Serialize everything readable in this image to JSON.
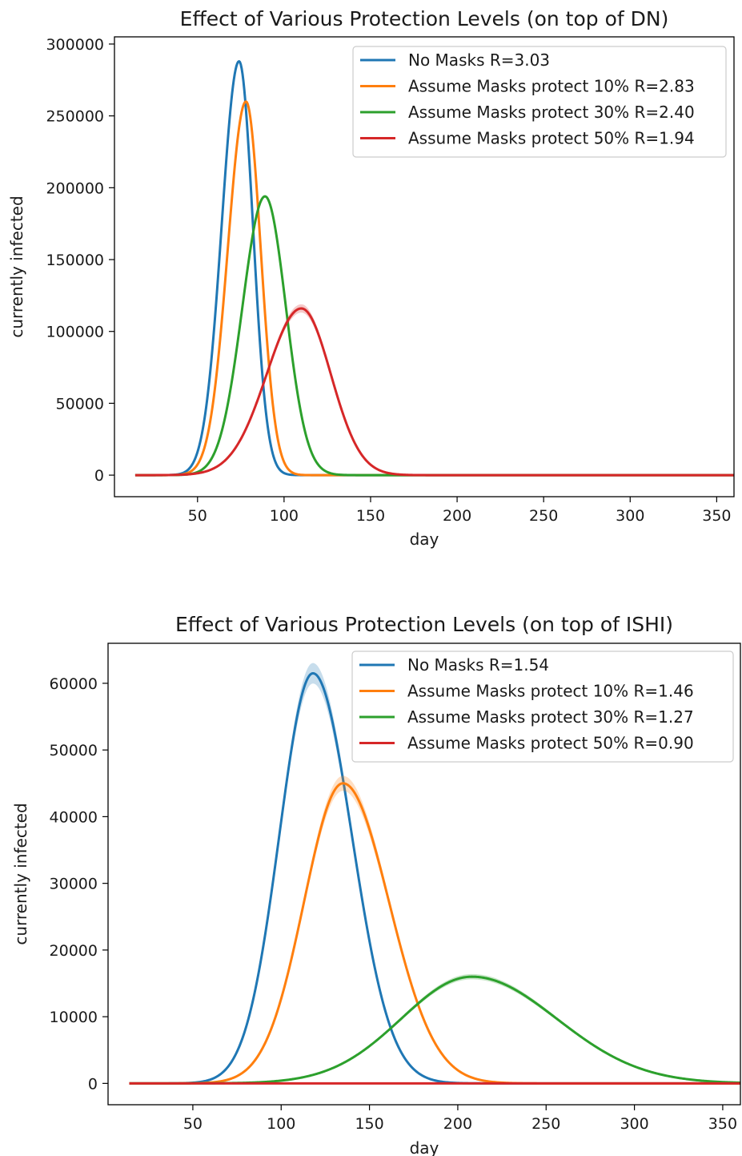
{
  "chart_data": [
    {
      "type": "line",
      "title": "Effect of Various Protection Levels (on top of DN)",
      "xlabel": "day",
      "ylabel": "currently infected",
      "xlim": [
        2,
        360
      ],
      "ylim": [
        -15000,
        305000
      ],
      "xticks": [
        50,
        100,
        150,
        200,
        250,
        300,
        350
      ],
      "yticks": [
        0,
        50000,
        100000,
        150000,
        200000,
        250000,
        300000
      ],
      "grid": false,
      "legend": "top-right",
      "series": [
        {
          "name": "No Masks R=3.03",
          "color": "#1f77b4",
          "peak_day": 74,
          "peak_value": 288000,
          "rise_width": 10.0,
          "fall_width": 8.0,
          "band": false
        },
        {
          "name": "Assume Masks protect 10% R=2.83",
          "color": "#ff7f0e",
          "peak_day": 78,
          "peak_value": 260000,
          "rise_width": 10.5,
          "fall_width": 8.5,
          "band": false
        },
        {
          "name": "Assume Masks protect 30% R=2.40",
          "color": "#2ca02c",
          "peak_day": 89,
          "peak_value": 194000,
          "rise_width": 13.0,
          "fall_width": 12.0,
          "band": false
        },
        {
          "name": "Assume Masks protect 50% R=1.94",
          "color": "#d62728",
          "peak_day": 110,
          "peak_value": 116000,
          "rise_width": 20.0,
          "fall_width": 17.0,
          "band": true
        }
      ],
      "x_start": 14,
      "x_end": 360
    },
    {
      "type": "line",
      "title": "Effect of Various Protection Levels (on top of ISHI)",
      "xlabel": "day",
      "ylabel": "currently infected",
      "xlim": [
        2,
        360
      ],
      "ylim": [
        -3200,
        66000
      ],
      "xticks": [
        50,
        100,
        150,
        200,
        250,
        300,
        350
      ],
      "yticks": [
        0,
        10000,
        20000,
        30000,
        40000,
        50000,
        60000
      ],
      "grid": false,
      "legend": "top-right",
      "series": [
        {
          "name": "No Masks R=1.54",
          "color": "#1f77b4",
          "peak_day": 118,
          "peak_value": 61500,
          "rise_width": 19.0,
          "fall_width": 22.0,
          "band": true
        },
        {
          "name": "Assume Masks protect 10% R=1.46",
          "color": "#ff7f0e",
          "peak_day": 135,
          "peak_value": 45000,
          "rise_width": 22.0,
          "fall_width": 26.0,
          "band": true
        },
        {
          "name": "Assume Masks protect 30% R=1.27",
          "color": "#2ca02c",
          "peak_day": 208,
          "peak_value": 16000,
          "rise_width": 40.0,
          "fall_width": 48.0,
          "band": true
        },
        {
          "name": "Assume Masks protect 50% R=0.90",
          "color": "#d62728",
          "peak_day": 30,
          "peak_value": 0,
          "rise_width": 30.0,
          "fall_width": 30.0,
          "band": false
        }
      ],
      "x_start": 14,
      "x_end": 360
    }
  ]
}
